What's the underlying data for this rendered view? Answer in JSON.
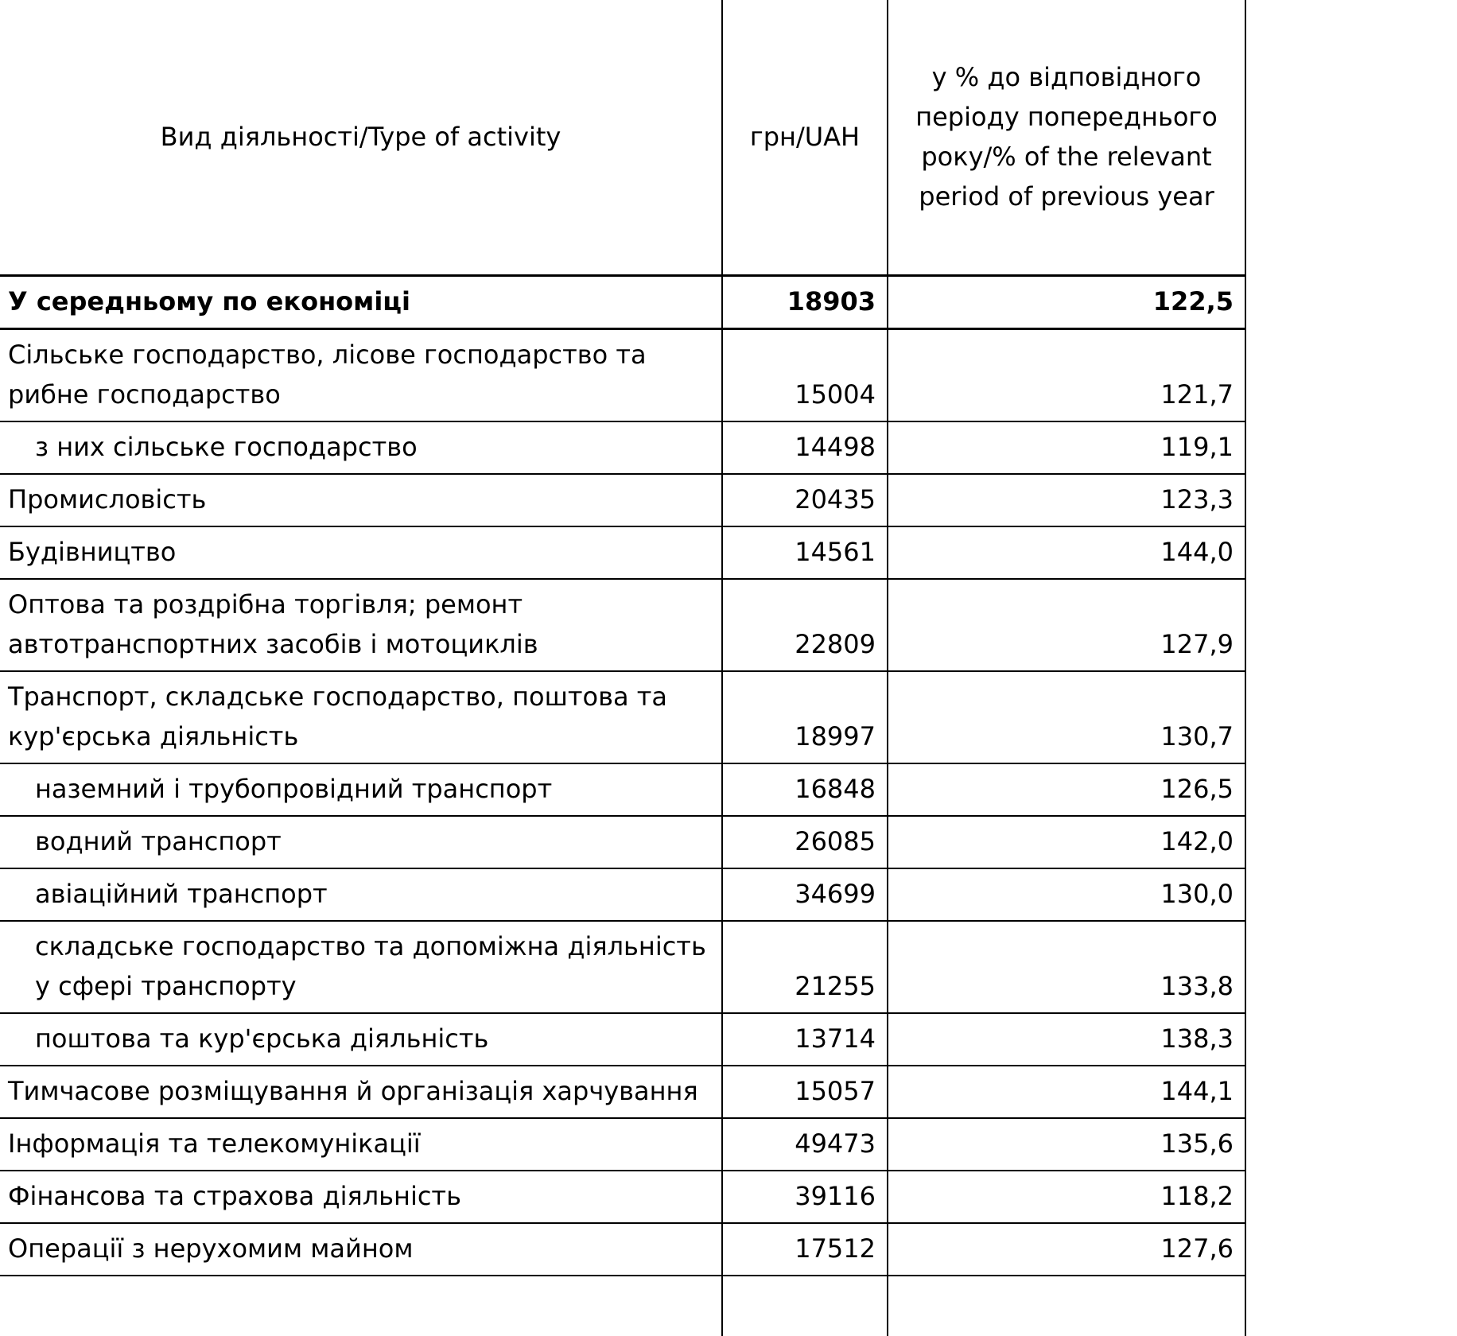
{
  "table": {
    "headers": {
      "activity": "Вид діяльності/Type of activity",
      "uah": "грн/UAH",
      "percent": "у % до відповідного періоду попереднього року/% of the relevant period of previous year"
    },
    "rows": [
      {
        "activity": "У середньому по економіці",
        "uah": "18903",
        "percent": "122,5",
        "bold": true,
        "indent": 0
      },
      {
        "activity": "Сільське господарство, лісове господарство та рибне господарство",
        "uah": "15004",
        "percent": "121,7",
        "bold": false,
        "indent": 0
      },
      {
        "activity": "з них сільське господарство",
        "uah": "14498",
        "percent": "119,1",
        "bold": false,
        "indent": 1
      },
      {
        "activity": "Промисловість",
        "uah": "20435",
        "percent": "123,3",
        "bold": false,
        "indent": 0
      },
      {
        "activity": "Будівництво",
        "uah": "14561",
        "percent": "144,0",
        "bold": false,
        "indent": 0
      },
      {
        "activity": "Оптова та роздрібна торгівля; ремонт автотранспортних засобів і мотоциклів",
        "uah": "22809",
        "percent": "127,9",
        "bold": false,
        "indent": 0
      },
      {
        "activity": "Транспорт, складське господарство, поштова та кур'єрська діяльність",
        "uah": "18997",
        "percent": "130,7",
        "bold": false,
        "indent": 0
      },
      {
        "activity": "наземний і трубопровідний транспорт",
        "uah": "16848",
        "percent": "126,5",
        "bold": false,
        "indent": 1
      },
      {
        "activity": "водний транспорт",
        "uah": "26085",
        "percent": "142,0",
        "bold": false,
        "indent": 1
      },
      {
        "activity": "авіаційний транспорт",
        "uah": "34699",
        "percent": "130,0",
        "bold": false,
        "indent": 1
      },
      {
        "activity": "складське господарство та допоміжна діяльність у сфері транспорту",
        "uah": "21255",
        "percent": "133,8",
        "bold": false,
        "indent": 1
      },
      {
        "activity": "поштова та кур'єрська діяльність",
        "uah": "13714",
        "percent": "138,3",
        "bold": false,
        "indent": 1
      },
      {
        "activity": "Тимчасове розміщування й організація харчування",
        "uah": "15057",
        "percent": "144,1",
        "bold": false,
        "indent": 0
      },
      {
        "activity": "Інформація та телекомунікації",
        "uah": "49473",
        "percent": "135,6",
        "bold": false,
        "indent": 0
      },
      {
        "activity": "Фінансова та страхова діяльність",
        "uah": "39116",
        "percent": "118,2",
        "bold": false,
        "indent": 0
      },
      {
        "activity": "Операції з нерухомим майном",
        "uah": "17512",
        "percent": "127,6",
        "bold": false,
        "indent": 0
      }
    ]
  }
}
